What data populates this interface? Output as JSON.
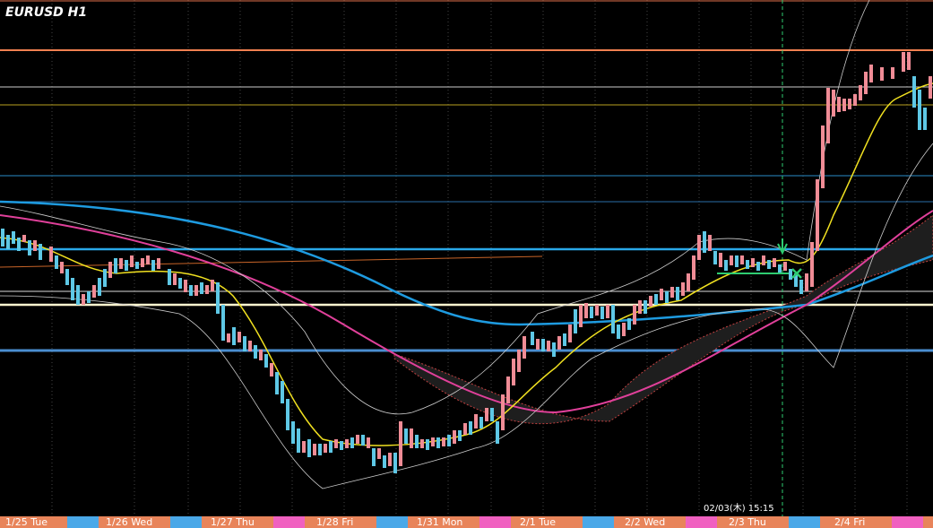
{
  "header": {
    "title": "EURUSD H1"
  },
  "cursor_time": "02/03(木)  15:15",
  "time_axis": {
    "labels": [
      "1/25 Tue",
      "1/26 Wed",
      "1/27 Thu",
      "1/28 Fri",
      "1/31 Mon",
      "2/1 Tue",
      "2/2 Wed",
      "2/3 Thu",
      "2/4 Fri"
    ]
  }
}
